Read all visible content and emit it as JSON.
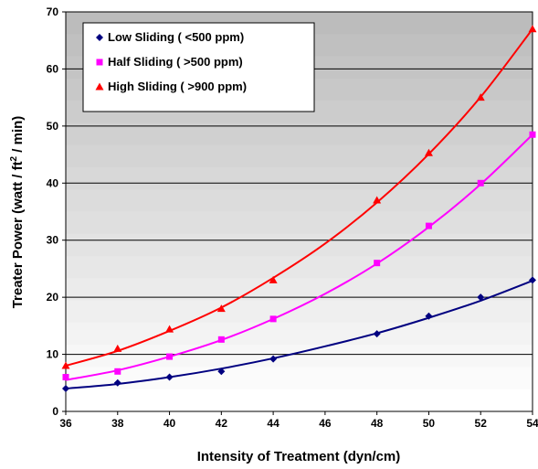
{
  "chart_data": {
    "type": "line",
    "xlabel": "Intensity of Treatment (dyn/cm)",
    "ylabel_parts": {
      "before": "Treater Power (watt / ft",
      "sup": "2",
      "after": " / min)"
    },
    "xlim": [
      36,
      54
    ],
    "ylim": [
      0,
      70
    ],
    "xticks": [
      36,
      38,
      40,
      42,
      44,
      46,
      48,
      50,
      52,
      54
    ],
    "yticks": [
      0,
      10,
      20,
      30,
      40,
      50,
      60,
      70
    ],
    "grid": "horizontal",
    "legend_position": "top-left",
    "series": [
      {
        "name": "Low Sliding ( <500 ppm)",
        "color": "#000080",
        "marker": "diamond",
        "points": [
          [
            36,
            4
          ],
          [
            38,
            5
          ],
          [
            40,
            6
          ],
          [
            42,
            7
          ],
          [
            44,
            9.2
          ],
          [
            48,
            13.6
          ],
          [
            50,
            16.7
          ],
          [
            52,
            20
          ],
          [
            54,
            23
          ]
        ],
        "trend": [
          [
            36,
            4
          ],
          [
            38,
            4.8
          ],
          [
            40,
            6.0
          ],
          [
            42,
            7.5
          ],
          [
            44,
            9.3
          ],
          [
            46,
            11.4
          ],
          [
            48,
            13.7
          ],
          [
            50,
            16.4
          ],
          [
            52,
            19.4
          ],
          [
            54,
            22.9
          ]
        ]
      },
      {
        "name": "Half Sliding ( >500 ppm)",
        "color": "#ff00ff",
        "marker": "square",
        "points": [
          [
            36,
            6
          ],
          [
            38,
            7
          ],
          [
            40,
            9.6
          ],
          [
            42,
            12.6
          ],
          [
            44,
            16.2
          ],
          [
            48,
            26
          ],
          [
            50,
            32.5
          ],
          [
            52,
            40
          ],
          [
            54,
            48.5
          ]
        ],
        "trend": [
          [
            36,
            5.5
          ],
          [
            38,
            7.2
          ],
          [
            40,
            9.6
          ],
          [
            42,
            12.5
          ],
          [
            44,
            16.2
          ],
          [
            46,
            20.6
          ],
          [
            48,
            25.9
          ],
          [
            50,
            32.3
          ],
          [
            52,
            39.8
          ],
          [
            54,
            48.5
          ]
        ]
      },
      {
        "name": "High Sliding ( >900 ppm)",
        "color": "#ff0000",
        "marker": "triangle",
        "points": [
          [
            36,
            8
          ],
          [
            38,
            11
          ],
          [
            40,
            14.4
          ],
          [
            42,
            18
          ],
          [
            44,
            23
          ],
          [
            48,
            37
          ],
          [
            50,
            45.3
          ],
          [
            52,
            55
          ],
          [
            54,
            67
          ]
        ],
        "trend": [
          [
            36,
            8.0
          ],
          [
            38,
            10.6
          ],
          [
            40,
            14.1
          ],
          [
            42,
            18.2
          ],
          [
            44,
            23.4
          ],
          [
            46,
            29.4
          ],
          [
            48,
            36.6
          ],
          [
            50,
            45.1
          ],
          [
            52,
            55.1
          ],
          [
            54,
            67.0
          ]
        ]
      }
    ]
  }
}
